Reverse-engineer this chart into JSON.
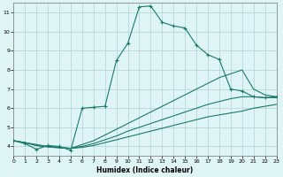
{
  "bg_color": "#dff4f4",
  "line_color": "#1a7a6a",
  "grid_color": "#b8d8d8",
  "xlabel": "Humidex (Indice chaleur)",
  "xlim": [
    0,
    23
  ],
  "ylim": [
    3.5,
    11.5
  ],
  "yticks": [
    4,
    5,
    6,
    7,
    8,
    9,
    10,
    11
  ],
  "xticks": [
    0,
    1,
    2,
    3,
    4,
    5,
    6,
    7,
    8,
    9,
    10,
    11,
    12,
    13,
    14,
    15,
    16,
    17,
    18,
    19,
    20,
    21,
    22,
    23
  ],
  "series1_x": [
    0,
    1,
    2,
    3,
    4,
    5,
    6,
    7,
    8,
    9,
    10,
    11,
    12,
    13,
    14,
    15,
    16,
    17,
    18,
    19,
    20,
    21,
    22,
    23
  ],
  "series1_y": [
    4.3,
    4.15,
    3.85,
    4.05,
    4.0,
    3.8,
    6.0,
    6.05,
    6.1,
    8.5,
    9.4,
    11.3,
    11.35,
    10.5,
    10.3,
    10.2,
    9.3,
    8.8,
    8.55,
    7.0,
    6.9,
    6.6,
    6.55,
    6.6
  ],
  "series2_x": [
    0,
    1,
    2,
    3,
    4,
    5,
    6,
    7,
    8,
    9,
    10,
    11,
    12,
    13,
    14,
    15,
    16,
    17,
    18,
    19,
    20,
    21,
    22,
    23
  ],
  "series2_y": [
    4.3,
    4.2,
    4.1,
    4.0,
    3.95,
    3.9,
    4.1,
    4.3,
    4.6,
    4.9,
    5.2,
    5.5,
    5.8,
    6.1,
    6.4,
    6.7,
    7.0,
    7.3,
    7.6,
    7.8,
    8.0,
    7.0,
    6.7,
    6.6
  ],
  "series3_x": [
    0,
    1,
    2,
    3,
    4,
    5,
    6,
    7,
    8,
    9,
    10,
    11,
    12,
    13,
    14,
    15,
    16,
    17,
    18,
    19,
    20,
    21,
    22,
    23
  ],
  "series3_y": [
    4.3,
    4.2,
    4.05,
    3.98,
    3.95,
    3.9,
    4.0,
    4.15,
    4.35,
    4.55,
    4.8,
    5.0,
    5.2,
    5.4,
    5.6,
    5.8,
    6.0,
    6.2,
    6.35,
    6.5,
    6.6,
    6.6,
    6.55,
    6.55
  ],
  "series4_x": [
    0,
    1,
    2,
    3,
    4,
    5,
    6,
    7,
    8,
    9,
    10,
    11,
    12,
    13,
    14,
    15,
    16,
    17,
    18,
    19,
    20,
    21,
    22,
    23
  ],
  "series4_y": [
    4.3,
    4.2,
    4.05,
    3.98,
    3.92,
    3.9,
    3.95,
    4.05,
    4.2,
    4.35,
    4.5,
    4.65,
    4.8,
    4.95,
    5.1,
    5.25,
    5.4,
    5.55,
    5.65,
    5.75,
    5.85,
    6.0,
    6.1,
    6.2
  ]
}
